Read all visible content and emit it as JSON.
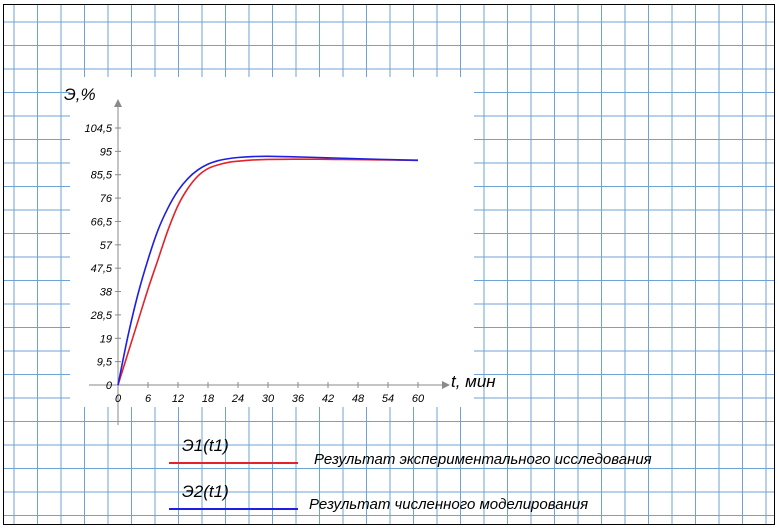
{
  "chart_data": {
    "type": "line",
    "xlabel": "t, мин",
    "ylabel": "Э,%",
    "x_ticks": [
      0,
      6,
      12,
      18,
      24,
      30,
      36,
      42,
      48,
      54,
      60
    ],
    "y_ticks": [
      "0",
      "9,5",
      "19",
      "28,5",
      "38",
      "47,5",
      "57",
      "66,5",
      "76",
      "85,5",
      "95",
      "104,5"
    ],
    "xlim": [
      0,
      60
    ],
    "ylim": [
      0,
      104.5
    ],
    "grid": true,
    "legend_position": "bottom",
    "series": [
      {
        "name": "Э1(t1)",
        "description": "Результат экспериментального исследования",
        "color": "#e3232b",
        "x": [
          0,
          2,
          4,
          6,
          8,
          10,
          12,
          14,
          16,
          18,
          20,
          22,
          24,
          27,
          30,
          35,
          40,
          45,
          50,
          55,
          60
        ],
        "y": [
          0,
          13,
          26,
          39,
          51,
          63,
          73,
          80,
          85,
          88,
          89.5,
          90.5,
          91,
          91.5,
          91.7,
          91.8,
          91.8,
          91.7,
          91.6,
          91.5,
          91.3
        ]
      },
      {
        "name": "Э2(t1)",
        "description": "Результат численного моделирования",
        "color": "#1f1fe3",
        "x": [
          0,
          2,
          4,
          6,
          8,
          10,
          12,
          14,
          16,
          18,
          20,
          22,
          24,
          27,
          30,
          35,
          40,
          45,
          50,
          55,
          60
        ],
        "y": [
          0,
          20,
          37,
          51,
          63,
          72,
          79,
          84,
          87.5,
          89.8,
          91.2,
          92,
          92.5,
          92.9,
          93,
          92.8,
          92.5,
          92.2,
          91.9,
          91.6,
          91.4
        ]
      }
    ]
  },
  "palette": {
    "grid_line": "#6fa3d6",
    "chart_background": "#ffffff",
    "axis": "#8a8a8a"
  }
}
